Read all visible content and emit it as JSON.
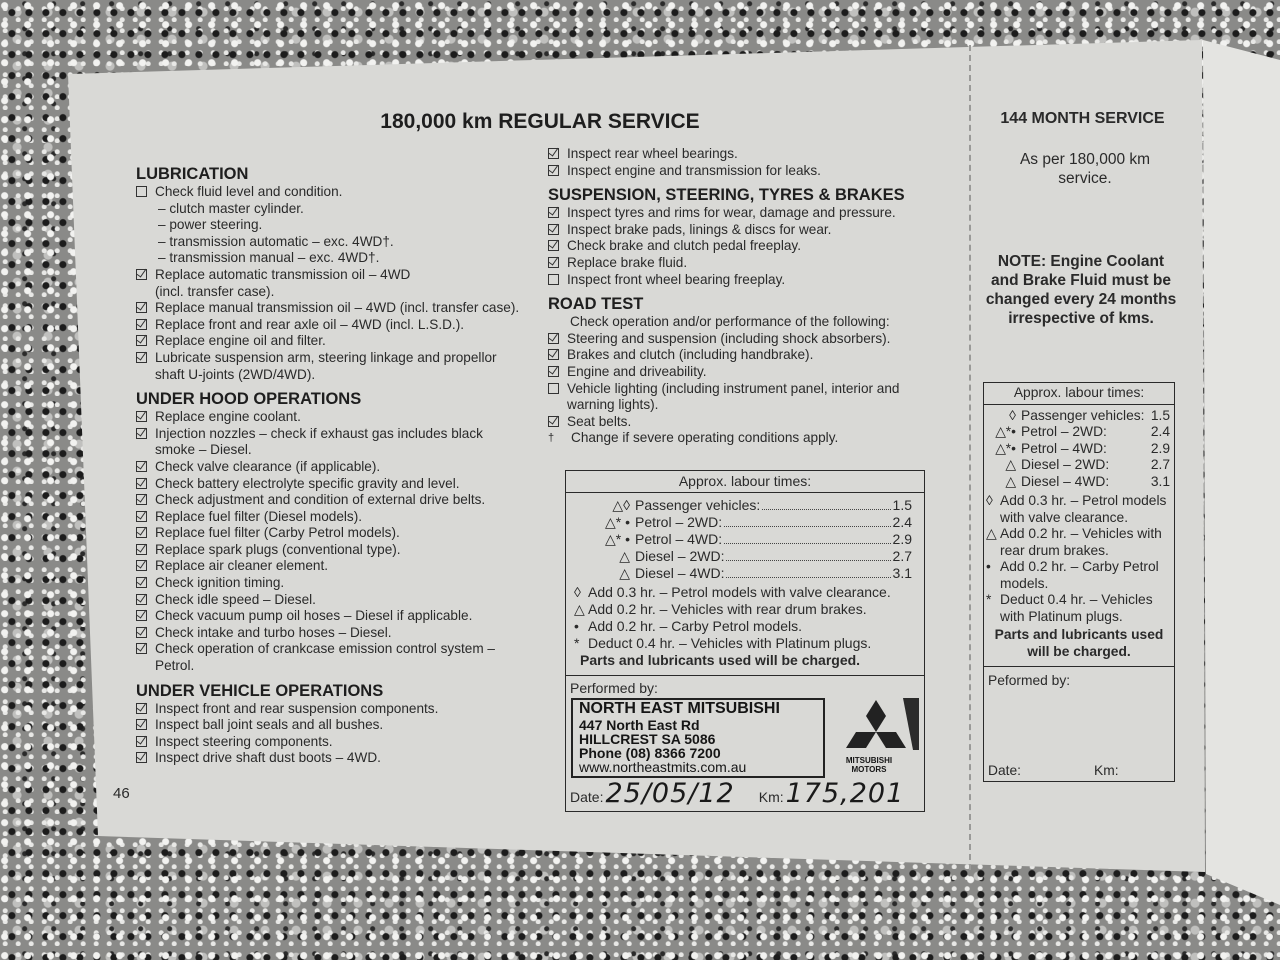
{
  "page": {
    "title": "180,000 km REGULAR SERVICE",
    "page_number": "46"
  },
  "left": {
    "sections": [
      {
        "heading": "LUBRICATION",
        "items": [
          {
            "checked": false,
            "lines": "Check fluid level and condition."
          },
          {
            "sub": true,
            "lines": "– clutch master cylinder."
          },
          {
            "sub": true,
            "lines": "– power steering."
          },
          {
            "sub": true,
            "lines": "– transmission automatic – exc. 4WD†."
          },
          {
            "sub": true,
            "lines": "– transmission manual – exc. 4WD†."
          },
          {
            "checked": true,
            "lines": "Replace automatic transmission oil – 4WD\n(incl. transfer case)."
          },
          {
            "checked": true,
            "lines": "Replace manual transmission oil – 4WD  (incl. transfer case)."
          },
          {
            "checked": true,
            "lines": "Replace front and rear axle oil – 4WD (incl. L.S.D.)."
          },
          {
            "checked": true,
            "lines": "Replace engine oil and filter."
          },
          {
            "checked": true,
            "lines": "Lubricate suspension arm, steering linkage and propellor\nshaft U-joints (2WD/4WD)."
          }
        ]
      },
      {
        "heading": "UNDER HOOD OPERATIONS",
        "items": [
          {
            "checked": true,
            "lines": "Replace engine coolant."
          },
          {
            "checked": true,
            "lines": "Injection nozzles – check if exhaust gas includes black\nsmoke – Diesel."
          },
          {
            "checked": true,
            "lines": "Check valve clearance (if applicable)."
          },
          {
            "checked": true,
            "lines": "Check battery electrolyte specific gravity and level."
          },
          {
            "checked": true,
            "lines": "Check adjustment and condition of external drive belts."
          },
          {
            "checked": true,
            "lines": "Replace fuel filter (Diesel models)."
          },
          {
            "checked": true,
            "lines": "Replace fuel filter (Carby Petrol models)."
          },
          {
            "checked": true,
            "lines": "Replace spark plugs (conventional type)."
          },
          {
            "checked": true,
            "lines": "Replace air cleaner element."
          },
          {
            "checked": true,
            "lines": "Check ignition timing."
          },
          {
            "checked": true,
            "lines": "Check idle speed – Diesel."
          },
          {
            "checked": true,
            "lines": "Check vacuum pump oil hoses – Diesel if applicable."
          },
          {
            "checked": true,
            "lines": "Check intake and turbo hoses – Diesel."
          },
          {
            "checked": true,
            "lines": "Check operation of crankcase emission control system –\nPetrol."
          }
        ]
      },
      {
        "heading": "UNDER VEHICLE OPERATIONS",
        "items": [
          {
            "checked": true,
            "lines": "Inspect front and rear suspension components."
          },
          {
            "checked": true,
            "lines": "Inspect ball joint seals and all bushes."
          },
          {
            "checked": true,
            "lines": "Inspect steering components."
          },
          {
            "checked": true,
            "lines": "Inspect drive shaft dust boots – 4WD."
          }
        ]
      }
    ]
  },
  "middle": {
    "sections": [
      {
        "heading": "",
        "items": [
          {
            "checked": true,
            "lines": "Inspect rear wheel bearings."
          },
          {
            "checked": true,
            "lines": "Inspect engine and transmission for leaks."
          }
        ]
      },
      {
        "heading": "SUSPENSION, STEERING, TYRES & BRAKES",
        "items": [
          {
            "checked": true,
            "lines": "Inspect tyres and rims for wear, damage and pressure."
          },
          {
            "checked": true,
            "lines": "Inspect brake pads, linings & discs for wear."
          },
          {
            "checked": true,
            "lines": "Check brake and clutch pedal freeplay."
          },
          {
            "checked": true,
            "lines": "Replace brake fluid."
          },
          {
            "checked": false,
            "lines": "Inspect front wheel bearing freeplay."
          }
        ]
      },
      {
        "heading": "ROAD TEST",
        "items": [
          {
            "sub": true,
            "lines": "Check operation and/or performance of the following:"
          },
          {
            "checked": true,
            "lines": "Steering and suspension (including shock absorbers)."
          },
          {
            "checked": true,
            "lines": "Brakes and clutch (including handbrake)."
          },
          {
            "checked": true,
            "lines": "Engine and driveability."
          },
          {
            "checked": false,
            "lines": "Vehicle lighting (including instrument panel, interior and\nwarning lights)."
          },
          {
            "checked": true,
            "lines": "Seat belts."
          },
          {
            "mark": "†",
            "lines": "Change if severe operating conditions apply."
          }
        ]
      }
    ],
    "labour": {
      "heading": "Approx. labour times:",
      "rows": [
        {
          "sym": "△◊",
          "label": "Passenger vehicles:",
          "value": "1.5"
        },
        {
          "sym": "△* •",
          "label": "Petrol – 2WD:",
          "value": "2.4"
        },
        {
          "sym": "△* •",
          "label": "Petrol – 4WD:",
          "value": "2.9"
        },
        {
          "sym": "△",
          "label": "Diesel – 2WD:",
          "value": "2.7"
        },
        {
          "sym": "△",
          "label": "Diesel – 4WD:",
          "value": "3.1"
        }
      ],
      "notes": [
        {
          "sym": "◊",
          "text": "Add 0.3 hr. – Petrol models with valve clearance."
        },
        {
          "sym": "△",
          "text": "Add 0.2 hr. – Vehicles with rear drum brakes."
        },
        {
          "sym": "•",
          "text": "Add 0.2 hr. – Carby Petrol models."
        },
        {
          "sym": "*",
          "text": "Deduct 0.4 hr. – Vehicles with Platinum plugs."
        }
      ],
      "charged": "Parts and lubricants used will be charged.",
      "performed_by": "Performed by:",
      "date_label": "Date:",
      "date_value": "25/05/12",
      "km_label": "Km:",
      "km_value": "175,201"
    },
    "stamp": {
      "name": "NORTH EAST MITSUBISHI",
      "address1": "447 North East Rd",
      "address2": "HILLCREST SA 5086",
      "phone": "Phone (08) 8366 7200",
      "web": "www.northeastmits.com.au",
      "logo_text": "MITSUBISHI MOTORS"
    }
  },
  "right": {
    "title": "144 MONTH SERVICE",
    "subtitle": "As per 180,000 km service.",
    "note": "NOTE: Engine Coolant and Brake Fluid must be changed every 24 months irrespective of kms.",
    "labour": {
      "heading": "Approx. labour times:",
      "rows": [
        {
          "sym": "◊",
          "label": "Passenger vehicles:",
          "value": "1.5"
        },
        {
          "sym": "△*•",
          "label": "Petrol – 2WD:",
          "value": "2.4"
        },
        {
          "sym": "△*•",
          "label": "Petrol – 4WD:",
          "value": "2.9"
        },
        {
          "sym": "△",
          "label": "Diesel – 2WD:",
          "value": "2.7"
        },
        {
          "sym": "△",
          "label": "Diesel – 4WD:",
          "value": "3.1"
        }
      ],
      "notes": [
        {
          "sym": "◊",
          "text": "Add 0.3 hr. – Petrol models with valve clearance."
        },
        {
          "sym": "△",
          "text": "Add 0.2 hr. – Vehicles with rear drum brakes."
        },
        {
          "sym": "•",
          "text": "Add 0.2 hr. – Carby Petrol models."
        },
        {
          "sym": "*",
          "text": "Deduct 0.4 hr. – Vehicles with Platinum plugs."
        }
      ],
      "charged": "Parts and lubricants used will be charged.",
      "performed_by": "Peformed by:",
      "date_label": "Date:",
      "km_label": "Km:"
    }
  }
}
